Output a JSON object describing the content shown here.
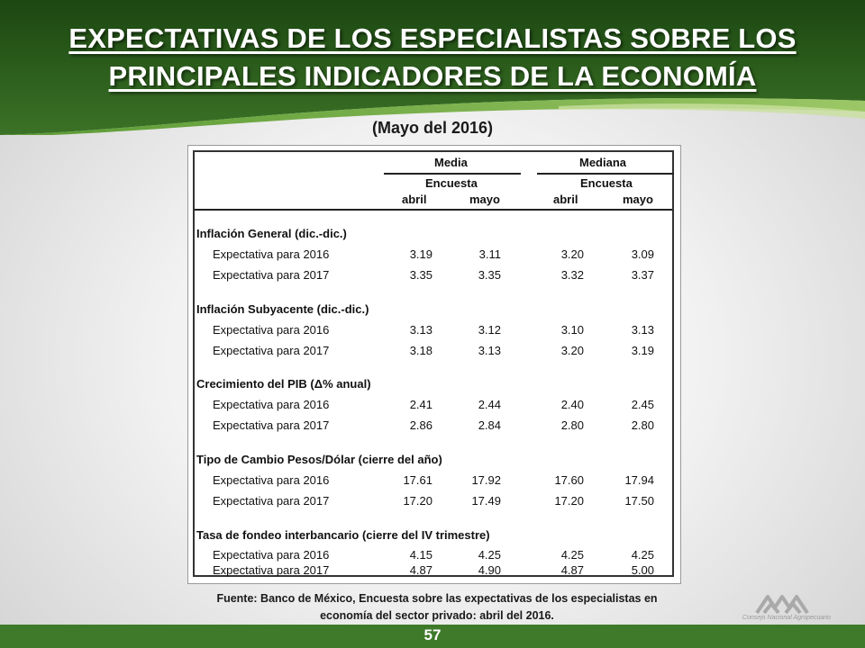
{
  "title_line1": "EXPECTATIVAS DE LOS ESPECIALISTAS SOBRE LOS",
  "title_line2": "PRINCIPALES INDICADORES DE LA ECONOMÍA",
  "subtitle": "(Mayo del 2016)",
  "table": {
    "group_media": "Media",
    "group_mediana": "Mediana",
    "sub_media": "Encuesta",
    "sub_mediana": "Encuesta",
    "cols": [
      "abril",
      "mayo",
      "abril",
      "mayo"
    ],
    "sections": [
      {
        "title": "Inflación General (dic.-dic.)",
        "rows": [
          {
            "label": "Expectativa para 2016",
            "values": [
              "3.19",
              "3.11",
              "3.20",
              "3.09"
            ]
          },
          {
            "label": "Expectativa para 2017",
            "values": [
              "3.35",
              "3.35",
              "3.32",
              "3.37"
            ]
          }
        ]
      },
      {
        "title": "Inflación Subyacente (dic.-dic.)",
        "rows": [
          {
            "label": "Expectativa para 2016",
            "values": [
              "3.13",
              "3.12",
              "3.10",
              "3.13"
            ]
          },
          {
            "label": "Expectativa para 2017",
            "values": [
              "3.18",
              "3.13",
              "3.20",
              "3.19"
            ]
          }
        ]
      },
      {
        "title": "Crecimiento del PIB (Δ% anual)",
        "rows": [
          {
            "label": "Expectativa para 2016",
            "values": [
              "2.41",
              "2.44",
              "2.40",
              "2.45"
            ]
          },
          {
            "label": "Expectativa para 2017",
            "values": [
              "2.86",
              "2.84",
              "2.80",
              "2.80"
            ]
          }
        ]
      },
      {
        "title": "Tipo de Cambio Pesos/Dólar (cierre del año)",
        "rows": [
          {
            "label": "Expectativa para 2016",
            "values": [
              "17.61",
              "17.92",
              "17.60",
              "17.94"
            ]
          },
          {
            "label": "Expectativa para 2017",
            "values": [
              "17.20",
              "17.49",
              "17.20",
              "17.50"
            ]
          }
        ]
      },
      {
        "title": "Tasa de fondeo interbancario (cierre del IV trimestre)",
        "rows": [
          {
            "label": "Expectativa para 2016",
            "values": [
              "4.15",
              "4.25",
              "4.25",
              "4.25"
            ]
          },
          {
            "label": "Expectativa para 2017",
            "values": [
              "4.87",
              "4.90",
              "4.87",
              "5.00"
            ]
          }
        ]
      }
    ]
  },
  "footer_line1": "Fuente: Banco de México, Encuesta sobre las expectativas de los especialistas en",
  "footer_line2": "economía del sector privado: abril del 2016.",
  "page_number": "57",
  "logo_text": "Consejo Nacional Agropecuario",
  "colors": {
    "dark_green": "#1f4d14",
    "mid_green": "#3e7a2a",
    "light_green": "#7fb24a"
  }
}
